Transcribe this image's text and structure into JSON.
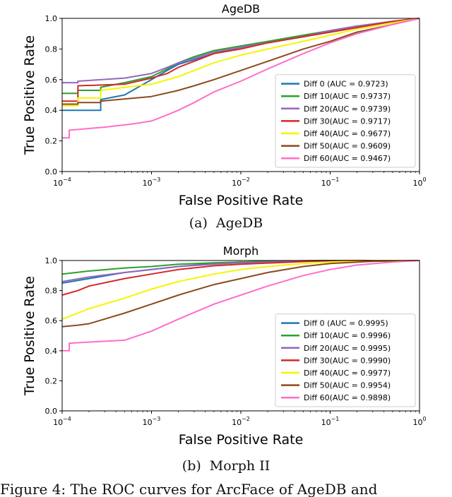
{
  "figure": {
    "caption": "Figure 4: The ROC curves for ArcFace of AgeDB and",
    "panels": [
      {
        "label": "(a)",
        "name": "AgeDB"
      },
      {
        "label": "(b)",
        "name": "Morph II"
      }
    ]
  },
  "chart_data": [
    {
      "type": "line",
      "title": "AgeDB",
      "xlabel": "False Positive Rate",
      "ylabel": "True Positive Rate",
      "xscale": "log",
      "xlim": [
        0.0001,
        1
      ],
      "ylim": [
        0,
        1
      ],
      "x_tick_labels": [
        {
          "base": "10",
          "exp": "−4"
        },
        {
          "base": "10",
          "exp": "−3"
        },
        {
          "base": "10",
          "exp": "−2"
        },
        {
          "base": "10",
          "exp": "−1"
        },
        {
          "base": "10",
          "exp": "0"
        }
      ],
      "y_ticks": [
        "0.0",
        "0.2",
        "0.4",
        "0.6",
        "0.8",
        "1.0"
      ],
      "legend_position": "lower-right",
      "grid": false,
      "series": [
        {
          "name": "Diff 0  (AUC = 0.9723)",
          "color": "#1f77b4",
          "points": [
            [
              0.0001,
              0.4
            ],
            [
              0.00027,
              0.4
            ],
            [
              0.00027,
              0.47
            ],
            [
              0.0005,
              0.5
            ],
            [
              0.001,
              0.6
            ],
            [
              0.0015,
              0.66
            ],
            [
              0.002,
              0.7
            ],
            [
              0.003,
              0.73
            ],
            [
              0.005,
              0.77
            ],
            [
              0.01,
              0.81
            ],
            [
              0.02,
              0.84
            ],
            [
              0.05,
              0.88
            ],
            [
              0.1,
              0.91
            ],
            [
              0.2,
              0.94
            ],
            [
              0.5,
              0.98
            ],
            [
              1,
              1.0
            ]
          ]
        },
        {
          "name": "Diff 10(AUC = 0.9737)",
          "color": "#2ca02c",
          "points": [
            [
              0.0001,
              0.51
            ],
            [
              0.00015,
              0.51
            ],
            [
              0.00015,
              0.53
            ],
            [
              0.00027,
              0.53
            ],
            [
              0.00027,
              0.55
            ],
            [
              0.0005,
              0.58
            ],
            [
              0.001,
              0.62
            ],
            [
              0.0015,
              0.67
            ],
            [
              0.002,
              0.71
            ],
            [
              0.003,
              0.75
            ],
            [
              0.005,
              0.79
            ],
            [
              0.01,
              0.82
            ],
            [
              0.02,
              0.85
            ],
            [
              0.05,
              0.89
            ],
            [
              0.1,
              0.92
            ],
            [
              0.2,
              0.95
            ],
            [
              0.5,
              0.98
            ],
            [
              1,
              1.0
            ]
          ]
        },
        {
          "name": "Diff 20(AUC = 0.9739)",
          "color": "#9467bd",
          "points": [
            [
              0.0001,
              0.58
            ],
            [
              0.00015,
              0.58
            ],
            [
              0.00015,
              0.59
            ],
            [
              0.0005,
              0.61
            ],
            [
              0.001,
              0.64
            ],
            [
              0.0015,
              0.68
            ],
            [
              0.002,
              0.71
            ],
            [
              0.003,
              0.74
            ],
            [
              0.005,
              0.78
            ],
            [
              0.01,
              0.81
            ],
            [
              0.02,
              0.84
            ],
            [
              0.05,
              0.88
            ],
            [
              0.1,
              0.92
            ],
            [
              0.2,
              0.95
            ],
            [
              0.5,
              0.98
            ],
            [
              1,
              1.0
            ]
          ]
        },
        {
          "name": "Diff 30(AUC = 0.9717)",
          "color": "#d62728",
          "points": [
            [
              0.0001,
              0.46
            ],
            [
              0.00015,
              0.46
            ],
            [
              0.00015,
              0.56
            ],
            [
              0.0005,
              0.57
            ],
            [
              0.001,
              0.61
            ],
            [
              0.0015,
              0.64
            ],
            [
              0.002,
              0.68
            ],
            [
              0.003,
              0.72
            ],
            [
              0.005,
              0.77
            ],
            [
              0.01,
              0.8
            ],
            [
              0.02,
              0.84
            ],
            [
              0.05,
              0.88
            ],
            [
              0.1,
              0.91
            ],
            [
              0.2,
              0.94
            ],
            [
              0.5,
              0.98
            ],
            [
              1,
              1.0
            ]
          ]
        },
        {
          "name": "Diff 40(AUC = 0.9677)",
          "color": "#f5f500",
          "points": [
            [
              0.0001,
              0.43
            ],
            [
              0.00015,
              0.43
            ],
            [
              0.00015,
              0.48
            ],
            [
              0.00027,
              0.48
            ],
            [
              0.00027,
              0.53
            ],
            [
              0.0007,
              0.56
            ],
            [
              0.001,
              0.57
            ],
            [
              0.002,
              0.62
            ],
            [
              0.003,
              0.66
            ],
            [
              0.005,
              0.71
            ],
            [
              0.01,
              0.76
            ],
            [
              0.02,
              0.8
            ],
            [
              0.05,
              0.85
            ],
            [
              0.1,
              0.89
            ],
            [
              0.2,
              0.93
            ],
            [
              0.5,
              0.97
            ],
            [
              1,
              1.0
            ]
          ]
        },
        {
          "name": "Diff 50(AUC = 0.9609)",
          "color": "#8c4a1e",
          "points": [
            [
              0.0001,
              0.44
            ],
            [
              0.00015,
              0.44
            ],
            [
              0.00015,
              0.45
            ],
            [
              0.00027,
              0.45
            ],
            [
              0.00027,
              0.46
            ],
            [
              0.001,
              0.49
            ],
            [
              0.002,
              0.53
            ],
            [
              0.003,
              0.56
            ],
            [
              0.005,
              0.6
            ],
            [
              0.01,
              0.66
            ],
            [
              0.02,
              0.72
            ],
            [
              0.05,
              0.8
            ],
            [
              0.1,
              0.85
            ],
            [
              0.2,
              0.91
            ],
            [
              0.5,
              0.96
            ],
            [
              1,
              1.0
            ]
          ]
        },
        {
          "name": "Diff 60(AUC = 0.9467)",
          "color": "#ff6ec7",
          "points": [
            [
              0.0001,
              0.22
            ],
            [
              0.00012,
              0.22
            ],
            [
              0.00012,
              0.27
            ],
            [
              0.0003,
              0.29
            ],
            [
              0.0006,
              0.31
            ],
            [
              0.001,
              0.33
            ],
            [
              0.0015,
              0.37
            ],
            [
              0.002,
              0.4
            ],
            [
              0.003,
              0.45
            ],
            [
              0.005,
              0.52
            ],
            [
              0.01,
              0.59
            ],
            [
              0.02,
              0.67
            ],
            [
              0.05,
              0.77
            ],
            [
              0.1,
              0.84
            ],
            [
              0.2,
              0.9
            ],
            [
              0.5,
              0.96
            ],
            [
              1,
              1.0
            ]
          ]
        }
      ]
    },
    {
      "type": "line",
      "title": "Morph",
      "xlabel": "False Positive Rate",
      "ylabel": "True Positive Rate",
      "xscale": "log",
      "xlim": [
        0.0001,
        1
      ],
      "ylim": [
        0,
        1
      ],
      "x_tick_labels": [
        {
          "base": "10",
          "exp": "−4"
        },
        {
          "base": "10",
          "exp": "−3"
        },
        {
          "base": "10",
          "exp": "−2"
        },
        {
          "base": "10",
          "exp": "−1"
        },
        {
          "base": "10",
          "exp": "0"
        }
      ],
      "y_ticks": [
        "0.0",
        "0.2",
        "0.4",
        "0.6",
        "0.8",
        "1.0"
      ],
      "legend_position": "lower-right",
      "grid": false,
      "series": [
        {
          "name": "Diff 0  (AUC = 0.9995)",
          "color": "#1f77b4",
          "points": [
            [
              0.0001,
              0.85
            ],
            [
              0.0002,
              0.88
            ],
            [
              0.0005,
              0.92
            ],
            [
              0.001,
              0.94
            ],
            [
              0.002,
              0.96
            ],
            [
              0.005,
              0.98
            ],
            [
              0.01,
              0.99
            ],
            [
              0.05,
              0.997
            ],
            [
              0.1,
              1.0
            ],
            [
              1,
              1.0
            ]
          ]
        },
        {
          "name": "Diff 10(AUC = 0.9996)",
          "color": "#2ca02c",
          "points": [
            [
              0.0001,
              0.91
            ],
            [
              0.0002,
              0.93
            ],
            [
              0.0005,
              0.95
            ],
            [
              0.001,
              0.96
            ],
            [
              0.002,
              0.975
            ],
            [
              0.005,
              0.985
            ],
            [
              0.01,
              0.99
            ],
            [
              0.05,
              0.998
            ],
            [
              0.1,
              1.0
            ],
            [
              1,
              1.0
            ]
          ]
        },
        {
          "name": "Diff 20(AUC = 0.9995)",
          "color": "#9467bd",
          "points": [
            [
              0.0001,
              0.86
            ],
            [
              0.0002,
              0.89
            ],
            [
              0.0005,
              0.92
            ],
            [
              0.001,
              0.94
            ],
            [
              0.002,
              0.96
            ],
            [
              0.005,
              0.975
            ],
            [
              0.01,
              0.985
            ],
            [
              0.05,
              0.996
            ],
            [
              0.1,
              1.0
            ],
            [
              1,
              1.0
            ]
          ]
        },
        {
          "name": "Diff 30(AUC = 0.9990)",
          "color": "#d62728",
          "points": [
            [
              0.0001,
              0.77
            ],
            [
              0.00015,
              0.8
            ],
            [
              0.0002,
              0.83
            ],
            [
              0.0005,
              0.88
            ],
            [
              0.001,
              0.91
            ],
            [
              0.002,
              0.94
            ],
            [
              0.005,
              0.965
            ],
            [
              0.01,
              0.975
            ],
            [
              0.05,
              0.993
            ],
            [
              0.1,
              0.998
            ],
            [
              0.2,
              1.0
            ],
            [
              1,
              1.0
            ]
          ]
        },
        {
          "name": "Diff 40(AUC = 0.9977)",
          "color": "#f5f500",
          "points": [
            [
              0.0001,
              0.61
            ],
            [
              0.00015,
              0.65
            ],
            [
              0.0002,
              0.68
            ],
            [
              0.0005,
              0.75
            ],
            [
              0.001,
              0.81
            ],
            [
              0.002,
              0.86
            ],
            [
              0.005,
              0.91
            ],
            [
              0.01,
              0.94
            ],
            [
              0.02,
              0.96
            ],
            [
              0.05,
              0.98
            ],
            [
              0.1,
              0.99
            ],
            [
              0.3,
              1.0
            ],
            [
              1,
              1.0
            ]
          ]
        },
        {
          "name": "Diff 50(AUC = 0.9954)",
          "color": "#8c4a1e",
          "points": [
            [
              0.0001,
              0.56
            ],
            [
              0.00015,
              0.57
            ],
            [
              0.0002,
              0.58
            ],
            [
              0.0005,
              0.65
            ],
            [
              0.001,
              0.71
            ],
            [
              0.002,
              0.77
            ],
            [
              0.005,
              0.84
            ],
            [
              0.01,
              0.88
            ],
            [
              0.02,
              0.92
            ],
            [
              0.05,
              0.96
            ],
            [
              0.1,
              0.98
            ],
            [
              0.3,
              0.995
            ],
            [
              1,
              1.0
            ]
          ]
        },
        {
          "name": "Diff 60(AUC = 0.9898)",
          "color": "#ff6ec7",
          "points": [
            [
              0.0001,
              0.4
            ],
            [
              0.00012,
              0.4
            ],
            [
              0.00012,
              0.45
            ],
            [
              0.0005,
              0.47
            ],
            [
              0.001,
              0.53
            ],
            [
              0.002,
              0.61
            ],
            [
              0.005,
              0.71
            ],
            [
              0.01,
              0.77
            ],
            [
              0.02,
              0.83
            ],
            [
              0.05,
              0.9
            ],
            [
              0.1,
              0.94
            ],
            [
              0.2,
              0.97
            ],
            [
              0.5,
              0.99
            ],
            [
              1,
              1.0
            ]
          ]
        }
      ]
    }
  ]
}
